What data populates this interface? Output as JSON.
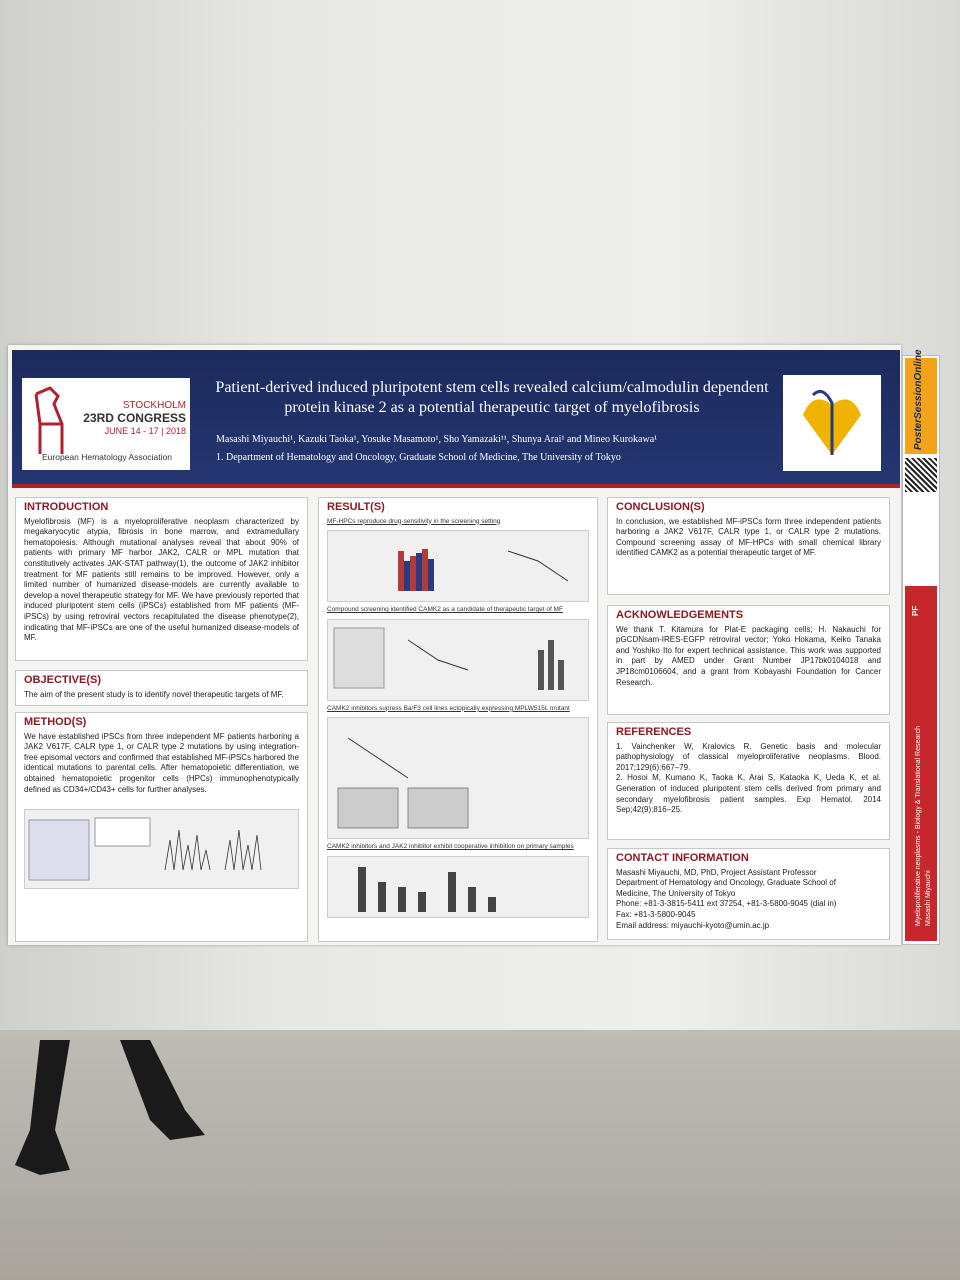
{
  "header": {
    "congress_city": "STOCKHOLM",
    "congress_name": "23RD CONGRESS",
    "congress_dates": "JUNE 14 - 17 | 2018",
    "association": "European Hematology Association",
    "title": "Patient-derived induced pluripotent stem cells revealed calcium/calmodulin dependent protein kinase 2 as a potential therapeutic target of myelofibrosis",
    "authors": "Masashi Miyauchi¹, Kazuki Taoka¹, Yosuke Masamoto¹, Sho Yamazaki¹¹, Shunya Arai¹ and Mineo Kurokawa¹",
    "affiliation": "1. Department of Hematology and Oncology, Graduate School of Medicine, The University of Tokyo"
  },
  "sections": {
    "introduction": {
      "heading": "INTRODUCTION",
      "text": "Myelofibrosis (MF) is a myeloproliferative neoplasm characterized by megakaryocytic atypia, fibrosis in bone marrow, and extramedullary hematopoiesis. Although mutational analyses reveal that about 90% of patients with primary MF harbor JAK2, CALR or MPL mutation that constitutively activates JAK-STAT pathway(1), the outcome of JAK2 inhibitor treatment for MF patients still remains to be improved. However, only a limited number of humanized disease-models are currently available to develop a novel therapeutic strategy for MF. We have previously reported that induced pluripotent stem cells (iPSCs) established from MF patients (MF-iPSCs) by using retroviral vectors recapitulated the disease phenotype(2), indicating that MF-iPSCs are one of the useful humanized disease-models of MF."
    },
    "objective": {
      "heading": "OBJECTIVE(S)",
      "text": "The aim of the present study is to identify novel therapeutic targets of MF."
    },
    "method": {
      "heading": "METHOD(S)",
      "text": "We have established iPSCs from three independent MF patients harboring a JAK2 V617F, CALR type 1, or CALR type 2 mutations by using integration-free episomal vectors and confirmed that established MF-iPSCs harbored the identical mutations to parental cells. After hematopoietic differentiation, we obtained hematopoietic progenitor cells (HPCs) immunophenotypically defined as CD34+/CD43+ cells for further analyses."
    },
    "results": {
      "heading": "RESULT(S)",
      "subheadings": [
        "MF-HPCs reproduce drug-sensitivity in the screening setting",
        "Compound screening identified CAMK2 as a candidate of therapeutic target of MF",
        "CAMK2 inhibitors supress Ba/F3 cell lines ectopically expressing MPLW515L mutant",
        "CAMK2 inhibitors and JAK2 inhibitor exhibit cooperative inhibition on primary samples"
      ]
    },
    "conclusion": {
      "heading": "CONCLUSION(S)",
      "text": "In conclusion, we established MF-iPSCs form three independent patients harboring a JAK2 V617F, CALR type 1, or CALR type 2 mutations. Compound screening assay of MF-HPCs with small chemical library identified CAMK2 as a potential therapeutic target of MF."
    },
    "acknowledgements": {
      "heading": "ACKNOWLEDGEMENTS",
      "text": "We thank T. Kitamura for Plat-E packaging cells; H. Nakauchi for pGCDNsam-IRES-EGFP retroviral vector; Yoko Hokama, Keiko Tanaka and Yoshiko Ito for expert technical assistance. This work was supported in part by AMED under Grant Number JP17bk0104018 and JP18cm0106604, and a grant from Kobayashi Foundation for Cancer Research."
    },
    "references": {
      "heading": "REFERENCES",
      "items": [
        "1. Vainchenker W, Kralovics R. Genetic basis and molecular pathophysiology of classical myeloproliferative neoplasms. Blood. 2017;129(6):667–79.",
        "2. Hosoi M, Kumano K, Taoka K, Arai S, Kataoka K, Ueda K, et al. Generation of induced pluripotent stem cells derived from primary and secondary myelofibrosis patient samples. Exp Hematol. 2014 Sep;42(9):816–25."
      ]
    },
    "contact": {
      "heading": "CONTACT INFORMATION",
      "lines": [
        "Masashi Miyauchi, MD, PhD, Project Assistant Professor",
        "Department of Hematology and Oncology, Graduate School of",
        "Medicine, The University of Tokyo",
        "Phone: +81-3-3815-5411 ext 37254,  +81-3-5800-9045 (dial in)",
        "Fax: +81-3-5800-9045",
        "Email address: miyauchi-kyoto@umin.ac.jp"
      ]
    }
  },
  "sidebar": {
    "brand": "PosterSessionOnline",
    "topic": "Myeloproliferative neoplasms - Biology & Translational Research",
    "author": "Masashi Miyauchi",
    "code": "PF"
  }
}
